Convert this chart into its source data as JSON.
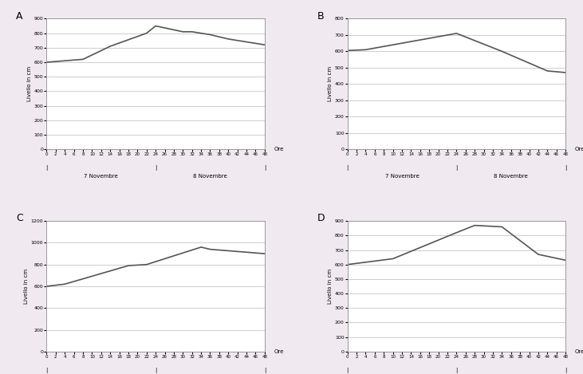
{
  "x_ticks": [
    0,
    2,
    4,
    6,
    8,
    10,
    12,
    14,
    16,
    18,
    20,
    22,
    24,
    26,
    28,
    30,
    32,
    34,
    36,
    38,
    40,
    42,
    44,
    46,
    48
  ],
  "charts": [
    {
      "label": "A",
      "x_data": [
        0,
        8,
        14,
        22,
        24,
        30,
        32,
        36,
        40,
        48
      ],
      "y_data": [
        600,
        620,
        710,
        800,
        850,
        810,
        810,
        790,
        760,
        720
      ],
      "ylim": [
        0,
        900
      ],
      "yticks": [
        0,
        100,
        200,
        300,
        400,
        500,
        600,
        700,
        800,
        900
      ]
    },
    {
      "label": "B",
      "x_data": [
        0,
        4,
        12,
        22,
        24,
        34,
        44,
        48
      ],
      "y_data": [
        605,
        610,
        650,
        700,
        710,
        600,
        480,
        470
      ],
      "ylim": [
        0,
        800
      ],
      "yticks": [
        0,
        100,
        200,
        300,
        400,
        500,
        600,
        700,
        800
      ]
    },
    {
      "label": "C",
      "x_data": [
        0,
        4,
        18,
        22,
        34,
        36,
        48
      ],
      "y_data": [
        600,
        620,
        790,
        800,
        960,
        940,
        900
      ],
      "ylim": [
        0,
        1200
      ],
      "yticks": [
        0,
        200,
        400,
        600,
        800,
        1000,
        1200
      ]
    },
    {
      "label": "D",
      "x_data": [
        0,
        10,
        24,
        28,
        34,
        42,
        48
      ],
      "y_data": [
        600,
        640,
        820,
        870,
        860,
        670,
        630
      ],
      "ylim": [
        0,
        900
      ],
      "yticks": [
        0,
        100,
        200,
        300,
        400,
        500,
        600,
        700,
        800,
        900
      ]
    }
  ],
  "xlabel": "Ore",
  "ylabel": "Livello in cm",
  "bg_color": "#ffffff",
  "outer_bg": "#f0eaf0",
  "border_color": "#a03080",
  "line_color": "#555555",
  "grid_color": "#bbbbbb",
  "nov7_label": "7 Novembre",
  "nov8_label": "8 Novembre",
  "tick_markers": [
    0,
    24,
    48
  ]
}
